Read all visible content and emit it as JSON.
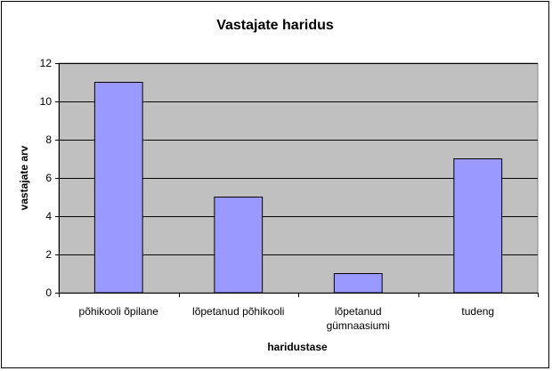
{
  "chart_data": {
    "type": "bar",
    "title": "Vastajate haridus",
    "xlabel": "haridustase",
    "ylabel": "vastajate arv",
    "categories": [
      [
        "põhikooli õpilane"
      ],
      [
        "lõpetanud põhikooli"
      ],
      [
        "lõpetanud",
        "gümnaasiumi"
      ],
      [
        "tudeng"
      ]
    ],
    "values": [
      11,
      5,
      1,
      7
    ],
    "ylim": [
      0,
      12
    ],
    "yticks": [
      0,
      2,
      4,
      6,
      8,
      10,
      12
    ],
    "grid": true,
    "legend": "none",
    "colors": {
      "plot_background": "#c0c0c0",
      "bar_fill": "#9999ff",
      "bar_stroke": "#000000",
      "gridline": "#000000"
    }
  }
}
